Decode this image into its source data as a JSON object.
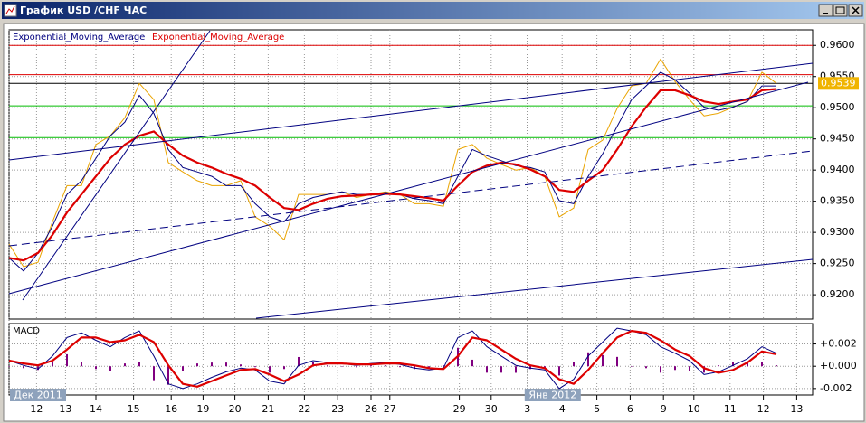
{
  "window": {
    "title": "График USD /CHF ЧАС"
  },
  "chart_data": [
    {
      "type": "line",
      "x": [
        0,
        10,
        20,
        30,
        40,
        50,
        60,
        70,
        80,
        90,
        100,
        110,
        120,
        130,
        140,
        150,
        160,
        170,
        180,
        190,
        200,
        210,
        220,
        230,
        240,
        250,
        260,
        270,
        280,
        290,
        300,
        310,
        320,
        330,
        340,
        350,
        360,
        370,
        380,
        390,
        400,
        410,
        420,
        430,
        440,
        450,
        460,
        470,
        480,
        490,
        500,
        510,
        520,
        530
      ],
      "series": [
        {
          "color": "#eaa400",
          "width": 1,
          "values": [
            0.9281,
            0.9245,
            0.9252,
            0.9317,
            0.9375,
            0.9375,
            0.9441,
            0.9455,
            0.9484,
            0.9539,
            0.9513,
            0.9412,
            0.9397,
            0.9383,
            0.9375,
            0.9375,
            0.9383,
            0.9325,
            0.931,
            0.9288,
            0.9361,
            0.9361,
            0.9361,
            0.9365,
            0.9356,
            0.9361,
            0.9365,
            0.9361,
            0.9346,
            0.9346,
            0.9342,
            0.9433,
            0.9441,
            0.9419,
            0.9409,
            0.94,
            0.9404,
            0.939,
            0.9325,
            0.9339,
            0.9433,
            0.9448,
            0.9499,
            0.9535,
            0.9539,
            0.9578,
            0.9542,
            0.9513,
            0.9487,
            0.9491,
            0.9501,
            0.951,
            0.9557,
            0.9539
          ]
        },
        {
          "name": "Exponential_Moving_Average",
          "color": "#000080",
          "width": 1,
          "values": [
            0.9259,
            0.9238,
            0.9267,
            0.931,
            0.9361,
            0.9383,
            0.9419,
            0.9455,
            0.9477,
            0.952,
            0.9491,
            0.9433,
            0.9404,
            0.9397,
            0.939,
            0.9375,
            0.9375,
            0.9346,
            0.9325,
            0.9317,
            0.9346,
            0.9356,
            0.9361,
            0.9365,
            0.9361,
            0.9361,
            0.9364,
            0.9361,
            0.9354,
            0.9351,
            0.9346,
            0.939,
            0.9433,
            0.9423,
            0.9415,
            0.9407,
            0.9404,
            0.9397,
            0.9351,
            0.9346,
            0.939,
            0.9426,
            0.947,
            0.9513,
            0.9535,
            0.9557,
            0.9545,
            0.9523,
            0.9501,
            0.9496,
            0.9501,
            0.951,
            0.9535,
            0.9535
          ]
        },
        {
          "name": "Exponential_Moving_Average",
          "color": "#dd0000",
          "width": 2.2,
          "values": [
            0.9259,
            0.9255,
            0.9267,
            0.9296,
            0.9332,
            0.9361,
            0.939,
            0.9419,
            0.9441,
            0.9455,
            0.9462,
            0.9441,
            0.9423,
            0.9412,
            0.9404,
            0.9394,
            0.9386,
            0.9375,
            0.9356,
            0.9339,
            0.9336,
            0.9346,
            0.9354,
            0.9358,
            0.9359,
            0.9361,
            0.9362,
            0.9361,
            0.9358,
            0.9355,
            0.9351,
            0.9375,
            0.9397,
            0.9407,
            0.9412,
            0.9409,
            0.9401,
            0.939,
            0.9368,
            0.9365,
            0.9383,
            0.94,
            0.9433,
            0.947,
            0.9501,
            0.9528,
            0.9528,
            0.952,
            0.951,
            0.9506,
            0.951,
            0.9513,
            0.9528,
            0.953
          ]
        }
      ],
      "levels": [
        {
          "value": 0.96,
          "color": "#dd0000"
        },
        {
          "value": 0.9553,
          "color": "#dd0000"
        },
        {
          "value": 0.9539,
          "color": "#000000"
        },
        {
          "value": 0.9503,
          "color": "#00bb00"
        },
        {
          "value": 0.9452,
          "color": "#00bb00"
        }
      ],
      "bid": 0.9539,
      "xlim": [
        0,
        555
      ],
      "xticks": [
        {
          "value": 19,
          "label": "12"
        },
        {
          "value": 39,
          "label": "13"
        },
        {
          "value": 60,
          "label": "14"
        },
        {
          "value": 86,
          "label": "15"
        },
        {
          "value": 112,
          "label": "16"
        },
        {
          "value": 134,
          "label": "19"
        },
        {
          "value": 156,
          "label": "20"
        },
        {
          "value": 179,
          "label": "21"
        },
        {
          "value": 204,
          "label": "22"
        },
        {
          "value": 227,
          "label": "23"
        },
        {
          "value": 250,
          "label": "26"
        },
        {
          "value": 263,
          "label": "27"
        },
        {
          "value": 311,
          "label": "29"
        },
        {
          "value": 333,
          "label": "30"
        },
        {
          "value": 358,
          "label": "3"
        },
        {
          "value": 382,
          "label": "4"
        },
        {
          "value": 406,
          "label": "5"
        },
        {
          "value": 429,
          "label": "6"
        },
        {
          "value": 452,
          "label": "9"
        },
        {
          "value": 473,
          "label": "10"
        },
        {
          "value": 498,
          "label": "11"
        },
        {
          "value": 521,
          "label": "12"
        },
        {
          "value": 544,
          "label": "13"
        }
      ],
      "periods": [
        {
          "value": 0,
          "label": "Дек 2011"
        },
        {
          "value": 358,
          "label": "Янв 2012"
        }
      ],
      "ylim": [
        0.9161,
        0.9625
      ],
      "yticks": [
        {
          "value": 0.96,
          "label": "0.9600"
        },
        {
          "value": 0.955,
          "label": "0.9550"
        },
        {
          "value": 0.95,
          "label": "0.9500"
        },
        {
          "value": 0.945,
          "label": "0.9450"
        },
        {
          "value": 0.94,
          "label": "0.9400"
        },
        {
          "value": 0.935,
          "label": "0.9350"
        },
        {
          "value": 0.93,
          "label": "0.9300"
        },
        {
          "value": 0.925,
          "label": "0.9250"
        },
        {
          "value": 0.92,
          "label": "0.9200"
        }
      ],
      "grid": true
    },
    {
      "type": "line",
      "title": "MACD",
      "x": [
        0,
        10,
        20,
        30,
        40,
        50,
        60,
        70,
        80,
        90,
        100,
        110,
        120,
        130,
        140,
        150,
        160,
        170,
        180,
        190,
        200,
        210,
        220,
        230,
        240,
        250,
        260,
        270,
        280,
        290,
        300,
        310,
        320,
        330,
        340,
        350,
        360,
        370,
        380,
        390,
        400,
        410,
        420,
        430,
        440,
        450,
        460,
        470,
        480,
        490,
        500,
        510,
        520,
        530
      ],
      "series": [
        {
          "kind": "bar",
          "color": "#800080",
          "values": [
            0,
            -0.00017,
            -0.00033,
            0.00042,
            0.00108,
            0.00042,
            -0.00025,
            -0.00042,
            0.00025,
            0.00034,
            -0.00125,
            -0.00166,
            -0.00042,
            0.00025,
            0.00033,
            0.00033,
            0.00016,
            -8e-05,
            -0.00058,
            -0.00025,
            0.00083,
            0.00042,
            8e-05,
            0,
            -9e-05,
            8e-05,
            8e-05,
            -8e-05,
            -0.00025,
            -0.00016,
            8e-05,
            0.00166,
            0.00059,
            -0.00058,
            -0.00058,
            -0.00059,
            -0.00025,
            -0.00016,
            -0.00083,
            0.00041,
            0.00125,
            0.001,
            0.00084,
            0,
            -0.00017,
            -0.00058,
            -0.00033,
            -0.00042,
            -0.00058,
            8e-05,
            0.00041,
            0.00034,
            0.00042,
            9e-05
          ]
        },
        {
          "kind": "line",
          "color": "#000080",
          "width": 1,
          "values": [
            0.0005,
            8e-05,
            -0.00025,
            0.00092,
            0.00258,
            0.003,
            0.00233,
            0.00175,
            0.00258,
            0.00317,
            0.00092,
            -0.00158,
            -0.002,
            -0.00158,
            -0.001,
            -0.0005,
            -0.00017,
            -0.00033,
            -0.00133,
            -0.00158,
            8e-05,
            0.0005,
            0.00033,
            0.00025,
            8e-05,
            0.00025,
            0.00033,
            0.00017,
            -0.00017,
            -0.00033,
            -0.00017,
            0.00258,
            0.00317,
            0.00175,
            0.00092,
            8e-05,
            -0.00017,
            -0.00033,
            -0.002,
            -0.00117,
            0.00092,
            0.00217,
            0.00342,
            0.00317,
            0.00283,
            0.00175,
            0.00117,
            0.0005,
            -0.00075,
            -0.0005,
            8e-05,
            0.00067,
            0.00175,
            0.00117
          ]
        },
        {
          "kind": "line",
          "color": "#dd0000",
          "width": 2.2,
          "values": [
            0.0005,
            0.00025,
            8e-05,
            0.0005,
            0.0015,
            0.00258,
            0.00258,
            0.00217,
            0.00233,
            0.00283,
            0.00217,
            8e-05,
            -0.00158,
            -0.00183,
            -0.00133,
            -0.00083,
            -0.00033,
            -0.00025,
            -0.00075,
            -0.00133,
            -0.00075,
            8e-05,
            0.00025,
            0.00025,
            0.00017,
            0.00017,
            0.00025,
            0.00025,
            8e-05,
            -0.00017,
            -0.00025,
            0.00092,
            0.00258,
            0.00233,
            0.0015,
            0.00067,
            8e-05,
            -0.00017,
            -0.00117,
            -0.00158,
            -0.00033,
            0.00117,
            0.00258,
            0.00317,
            0.003,
            0.00233,
            0.0015,
            0.00092,
            -0.00017,
            -0.00058,
            -0.00033,
            0.00033,
            0.00133,
            0.00108
          ]
        }
      ],
      "ylim": [
        -0.00258,
        0.00383
      ],
      "yticks": [
        {
          "value": 0.002,
          "label": "+0.002"
        },
        {
          "value": 0,
          "label": "+0.000"
        },
        {
          "value": -0.002,
          "label": "-0.002"
        }
      ],
      "grid": true
    }
  ]
}
